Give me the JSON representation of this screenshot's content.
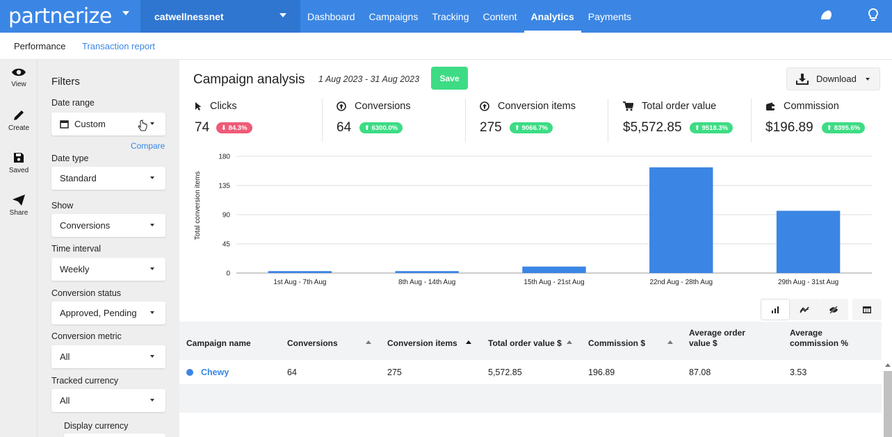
{
  "app": {
    "brand": "partnerize",
    "account": "catwellnessnet",
    "nav": [
      "Dashboard",
      "Campaigns",
      "Tracking",
      "Content",
      "Analytics",
      "Payments"
    ],
    "active_nav": "Analytics"
  },
  "subnav": {
    "items": [
      "Performance",
      "Transaction report"
    ],
    "active": "Performance"
  },
  "rail": {
    "items": [
      "View",
      "Create",
      "Saved",
      "Share"
    ]
  },
  "filters": {
    "title": "Filters",
    "date_range": {
      "label": "Date range",
      "value": "Custom"
    },
    "compare": "Compare",
    "date_type": {
      "label": "Date type",
      "value": "Standard"
    },
    "show": {
      "label": "Show",
      "value": "Conversions"
    },
    "time_interval": {
      "label": "Time interval",
      "value": "Weekly"
    },
    "conversion_status": {
      "label": "Conversion status",
      "value": "Approved, Pending"
    },
    "conversion_metric": {
      "label": "Conversion metric",
      "value": "All"
    },
    "tracked_currency": {
      "label": "Tracked currency",
      "value": "All"
    },
    "display_currency": {
      "label": "Display currency"
    }
  },
  "main": {
    "title": "Campaign analysis",
    "date_range": "1 Aug 2023 - 31 Aug 2023",
    "save_label": "Save",
    "download_label": "Download",
    "metrics": [
      {
        "name": "Clicks",
        "icon": "cursor-icon",
        "value": "74",
        "change": "⬇ 84.3%",
        "direction": "down"
      },
      {
        "name": "Conversions",
        "icon": "arrow-circle-up-icon",
        "value": "64",
        "change": "⬆ 6300.0%",
        "direction": "up"
      },
      {
        "name": "Conversion items",
        "icon": "arrow-circle-up-icon",
        "value": "275",
        "change": "⬆ 9066.7%",
        "direction": "up"
      },
      {
        "name": "Total order value",
        "icon": "cart-icon",
        "value": "$5,572.85",
        "change": "⬆ 9518.3%",
        "direction": "up"
      },
      {
        "name": "Commission",
        "icon": "wallet-icon",
        "value": "$196.89",
        "change": "⬆ 8395.6%",
        "direction": "up"
      }
    ]
  },
  "chart_data": {
    "type": "bar",
    "categories": [
      "1st Aug - 7th Aug",
      "8th Aug - 14th Aug",
      "15th Aug - 21st Aug",
      "22nd Aug - 28th Aug",
      "29th Aug - 31st Aug"
    ],
    "values": [
      3,
      3,
      10,
      163,
      96
    ],
    "ylabel": "Total conversion items",
    "ylim": [
      0,
      180
    ],
    "yticks": [
      "180",
      "135",
      "90",
      "45",
      "0"
    ],
    "bar_color": "#3b86e4",
    "grid": true
  },
  "table": {
    "headers": [
      "Campaign name",
      "Conversions",
      "Conversion items",
      "Total order value $",
      "Commission $",
      "Average order value $",
      "Average commission %"
    ],
    "rows": [
      [
        "Chewy",
        "64",
        "275",
        "5,572.85",
        "196.89",
        "87.08",
        "3.53"
      ]
    ]
  }
}
